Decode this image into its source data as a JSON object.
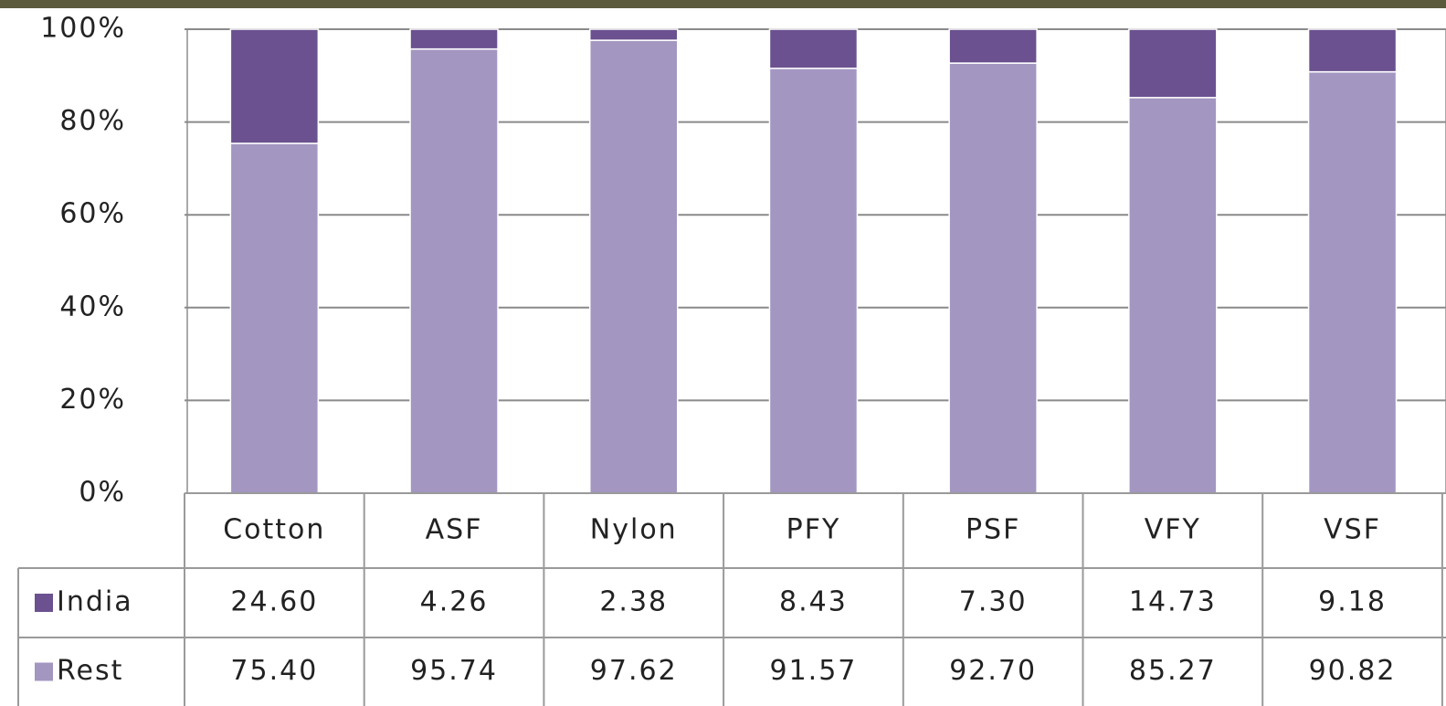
{
  "chart_data": {
    "type": "stacked-bar",
    "categories": [
      "Cotton",
      "ASF",
      "Nylon",
      "PFY",
      "PSF",
      "VFY",
      "VSF"
    ],
    "series": [
      {
        "name": "India",
        "color": "#6b5190",
        "values": [
          24.6,
          4.26,
          2.38,
          8.43,
          7.3,
          14.73,
          9.18
        ],
        "value_labels": [
          "24.60",
          "4.26",
          "2.38",
          "8.43",
          "7.30",
          "14.73",
          "9.18"
        ]
      },
      {
        "name": "Rest",
        "color": "#a396c1",
        "values": [
          75.4,
          95.74,
          97.62,
          91.57,
          92.7,
          85.27,
          90.82
        ],
        "value_labels": [
          "75.40",
          "95.74",
          "97.62",
          "91.57",
          "92.70",
          "85.27",
          "90.82"
        ]
      }
    ],
    "ylim": [
      0,
      100
    ],
    "yticks": [
      {
        "value": 0,
        "label": "0%"
      },
      {
        "value": 20,
        "label": "20%"
      },
      {
        "value": 40,
        "label": "40%"
      },
      {
        "value": 60,
        "label": "60%"
      },
      {
        "value": 80,
        "label": "80%"
      },
      {
        "value": 100,
        "label": "100%"
      }
    ],
    "grid": true
  }
}
